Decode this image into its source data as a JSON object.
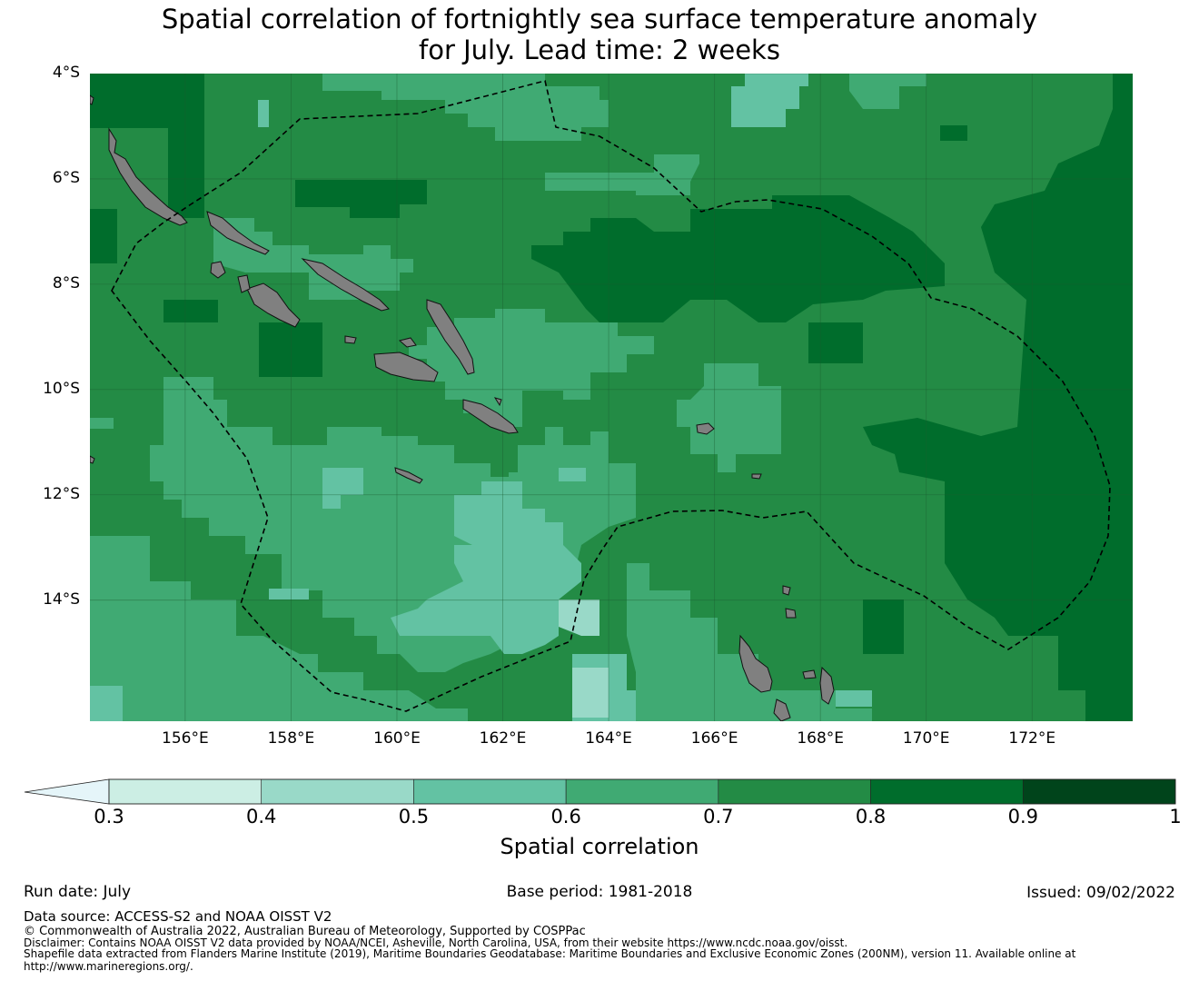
{
  "title": {
    "line1": "Spatial correlation of fortnightly sea surface temperature anomaly",
    "line2": "for July. Lead time: 2 weeks"
  },
  "map": {
    "lat_range": [
      -16.3,
      -4.0
    ],
    "lon_range": [
      154.2,
      173.9
    ],
    "y_ticks": [
      {
        "lat": -4,
        "label": "4°S"
      },
      {
        "lat": -6,
        "label": "6°S"
      },
      {
        "lat": -8,
        "label": "8°S"
      },
      {
        "lat": -10,
        "label": "10°S"
      },
      {
        "lat": -12,
        "label": "12°S"
      },
      {
        "lat": -14,
        "label": "14°S"
      }
    ],
    "x_ticks": [
      {
        "lon": 156,
        "label": "156°E"
      },
      {
        "lon": 158,
        "label": "158°E"
      },
      {
        "lon": 160,
        "label": "160°E"
      },
      {
        "lon": 162,
        "label": "162°E"
      },
      {
        "lon": 164,
        "label": "164°E"
      },
      {
        "lon": 166,
        "label": "166°E"
      },
      {
        "lon": 168,
        "label": "168°E"
      },
      {
        "lon": 170,
        "label": "170°E"
      },
      {
        "lon": 172,
        "label": "172°E"
      }
    ],
    "land_color": "#808080",
    "boundary_style": "dashed"
  },
  "colorbar": {
    "label": "Spatial correlation",
    "ticks": [
      "0.3",
      "0.4",
      "0.5",
      "0.6",
      "0.7",
      "0.8",
      "0.9",
      "1"
    ],
    "bins": [
      {
        "from": 0.3,
        "to": 0.4,
        "color": "#cceee4"
      },
      {
        "from": 0.4,
        "to": 0.5,
        "color": "#99d9c8"
      },
      {
        "from": 0.5,
        "to": 0.6,
        "color": "#63c2a3"
      },
      {
        "from": 0.6,
        "to": 0.7,
        "color": "#40aa73"
      },
      {
        "from": 0.7,
        "to": 0.8,
        "color": "#238b45"
      },
      {
        "from": 0.8,
        "to": 0.9,
        "color": "#006d2c"
      },
      {
        "from": 0.9,
        "to": 1.0,
        "color": "#00441b"
      }
    ],
    "under_color": "#e5f5f9"
  },
  "footer": {
    "run_date": "Run date: July",
    "base_period": "Base period: 1981-2018",
    "issued": "Issued: 09/02/2022",
    "data_source": "Data source: ACCESS-S2 and NOAA OISST V2",
    "copyright": "© Commonwealth of Australia 2022, Australian Bureau of Meteorology, Supported by COSPPac",
    "disclaimer": "Disclaimer: Contains NOAA OISST V2 data provided by NOAA/NCEI, Asheville, North Carolina, USA, from their website https://www.ncdc.noaa.gov/oisst.",
    "shapefile": "Shapefile data extracted from Flanders Marine Institute (2019), Maritime Boundaries Geodatabase: Maritime Boundaries and Exclusive Economic Zones (200NM), version 11. Available online at",
    "shapefile_url": "http://www.marineregions.org/."
  }
}
